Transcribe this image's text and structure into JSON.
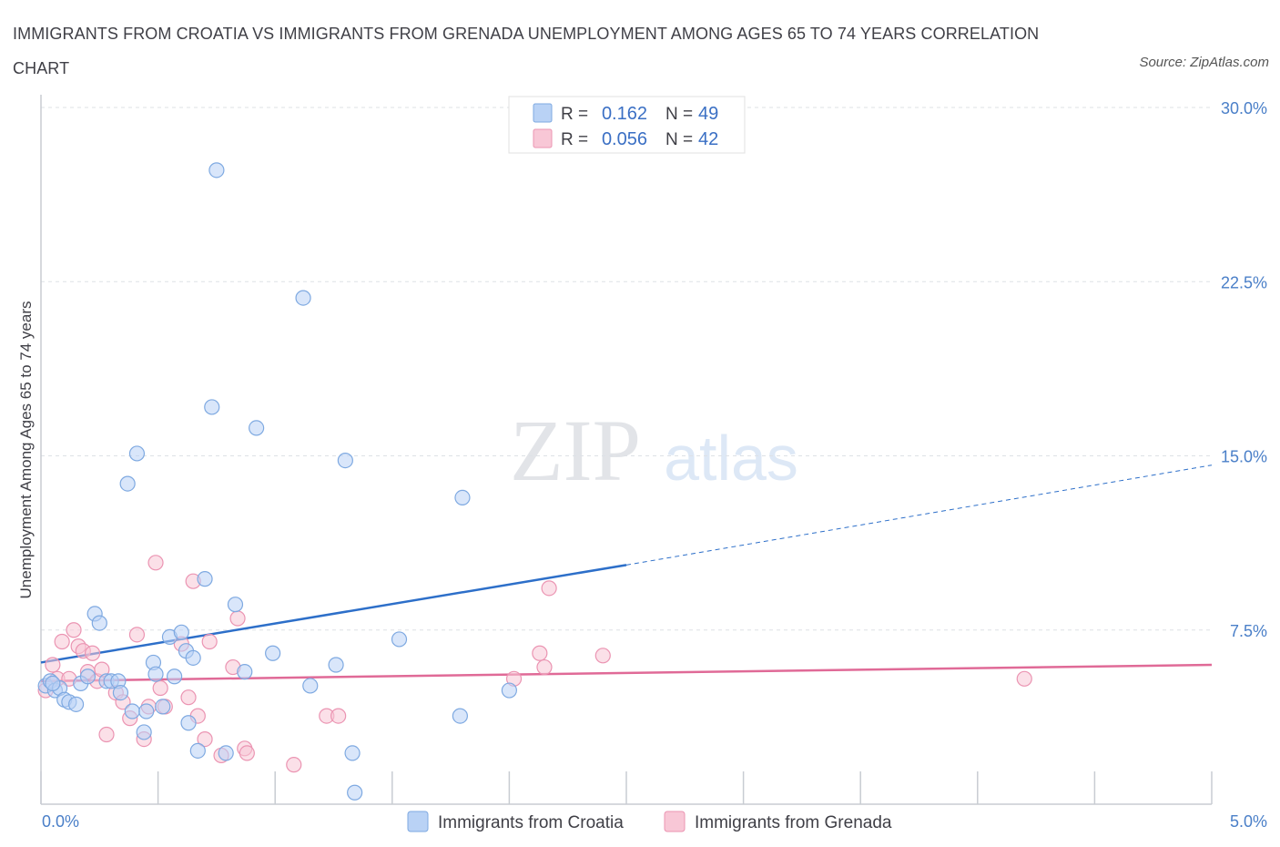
{
  "title": "IMMIGRANTS FROM CROATIA VS IMMIGRANTS FROM GRENADA UNEMPLOYMENT AMONG AGES 65 TO 74 YEARS CORRELATION CHART",
  "source": "Source: ZipAtlas.com",
  "watermark": {
    "zip": "ZIP",
    "atlas": "atlas"
  },
  "colors": {
    "croatia_fill": "#b9d2f5",
    "croatia_stroke": "#7ea9e1",
    "croatia_line": "#2d6fc9",
    "grenada_fill": "#f8c7d6",
    "grenada_stroke": "#eb94b2",
    "grenada_line": "#e06a97",
    "axis_label": "#4a7fc8",
    "grid": "#dde1e6"
  },
  "legend_top": {
    "rows": [
      {
        "r_label": "R =",
        "r_value": "0.162",
        "n_label": "N =",
        "n_value": "49"
      },
      {
        "r_label": "R =",
        "r_value": "0.056",
        "n_label": "N =",
        "n_value": "42"
      }
    ]
  },
  "legend_bottom": {
    "items": [
      "Immigrants from Croatia",
      "Immigrants from Grenada"
    ]
  },
  "chart_data": {
    "type": "scatter",
    "title": "IMMIGRANTS FROM CROATIA VS IMMIGRANTS FROM GRENADA UNEMPLOYMENT AMONG AGES 65 TO 74 YEARS CORRELATION CHART",
    "xlabel": "",
    "ylabel": "Unemployment Among Ages 65 to 74 years",
    "xlim": [
      0,
      5
    ],
    "ylim": [
      0,
      30
    ],
    "x_tick_labels": [
      "0.0%",
      "5.0%"
    ],
    "y_ticks": [
      7.5,
      15,
      22.5,
      30
    ],
    "y_tick_labels": [
      "7.5%",
      "15.0%",
      "22.5%",
      "30.0%"
    ],
    "grid": true,
    "legend_position": "top-center",
    "series": [
      {
        "name": "Immigrants from Croatia",
        "R": 0.162,
        "N": 49,
        "trend": {
          "x0": 0,
          "y0": 6.1,
          "x1": 2.5,
          "y1": 10.3,
          "dashed_to_x": 5.0,
          "dashed_to_y": 14.6
        },
        "points": [
          [
            0.02,
            5.1
          ],
          [
            0.04,
            5.3
          ],
          [
            0.06,
            4.9
          ],
          [
            0.08,
            5.0
          ],
          [
            0.1,
            4.5
          ],
          [
            0.12,
            4.4
          ],
          [
            0.15,
            4.3
          ],
          [
            0.17,
            5.2
          ],
          [
            0.2,
            5.5
          ],
          [
            0.23,
            8.2
          ],
          [
            0.25,
            7.8
          ],
          [
            0.28,
            5.3
          ],
          [
            0.3,
            5.3
          ],
          [
            0.33,
            5.3
          ],
          [
            0.34,
            4.8
          ],
          [
            0.37,
            13.8
          ],
          [
            0.39,
            4.0
          ],
          [
            0.41,
            15.1
          ],
          [
            0.44,
            3.1
          ],
          [
            0.45,
            4.0
          ],
          [
            0.48,
            6.1
          ],
          [
            0.49,
            5.6
          ],
          [
            0.52,
            4.2
          ],
          [
            0.55,
            7.2
          ],
          [
            0.57,
            5.5
          ],
          [
            0.6,
            7.4
          ],
          [
            0.62,
            6.6
          ],
          [
            0.63,
            3.5
          ],
          [
            0.65,
            6.3
          ],
          [
            0.67,
            2.3
          ],
          [
            0.7,
            9.7
          ],
          [
            0.73,
            17.1
          ],
          [
            0.75,
            27.3
          ],
          [
            0.79,
            2.2
          ],
          [
            0.83,
            8.6
          ],
          [
            0.87,
            5.7
          ],
          [
            0.92,
            16.2
          ],
          [
            0.99,
            6.5
          ],
          [
            1.12,
            21.8
          ],
          [
            1.15,
            5.1
          ],
          [
            1.26,
            6.0
          ],
          [
            1.3,
            14.8
          ],
          [
            1.33,
            2.2
          ],
          [
            1.34,
            0.5
          ],
          [
            1.53,
            7.1
          ],
          [
            1.79,
            3.8
          ],
          [
            1.8,
            13.2
          ],
          [
            2.0,
            4.9
          ],
          [
            0.05,
            5.2
          ]
        ]
      },
      {
        "name": "Immigrants from Grenada",
        "R": 0.056,
        "N": 42,
        "trend": {
          "x0": 0,
          "y0": 5.3,
          "x1": 5.0,
          "y1": 6.0
        },
        "points": [
          [
            0.02,
            4.9
          ],
          [
            0.05,
            6.0
          ],
          [
            0.07,
            5.4
          ],
          [
            0.09,
            7.0
          ],
          [
            0.12,
            5.4
          ],
          [
            0.14,
            7.5
          ],
          [
            0.16,
            6.8
          ],
          [
            0.18,
            6.6
          ],
          [
            0.2,
            5.7
          ],
          [
            0.22,
            6.5
          ],
          [
            0.24,
            5.3
          ],
          [
            0.26,
            5.8
          ],
          [
            0.28,
            3.0
          ],
          [
            0.32,
            4.8
          ],
          [
            0.35,
            4.4
          ],
          [
            0.38,
            3.7
          ],
          [
            0.41,
            7.3
          ],
          [
            0.44,
            2.8
          ],
          [
            0.46,
            4.2
          ],
          [
            0.49,
            10.4
          ],
          [
            0.51,
            5.0
          ],
          [
            0.53,
            4.2
          ],
          [
            0.6,
            6.9
          ],
          [
            0.63,
            4.6
          ],
          [
            0.65,
            9.6
          ],
          [
            0.67,
            3.8
          ],
          [
            0.7,
            2.8
          ],
          [
            0.72,
            7.0
          ],
          [
            0.77,
            2.1
          ],
          [
            0.82,
            5.9
          ],
          [
            0.84,
            8.0
          ],
          [
            0.87,
            2.4
          ],
          [
            0.88,
            2.2
          ],
          [
            1.08,
            1.7
          ],
          [
            1.22,
            3.8
          ],
          [
            1.27,
            3.8
          ],
          [
            2.02,
            5.4
          ],
          [
            2.13,
            6.5
          ],
          [
            2.15,
            5.9
          ],
          [
            2.17,
            9.3
          ],
          [
            2.4,
            6.4
          ],
          [
            4.2,
            5.4
          ]
        ]
      }
    ]
  }
}
